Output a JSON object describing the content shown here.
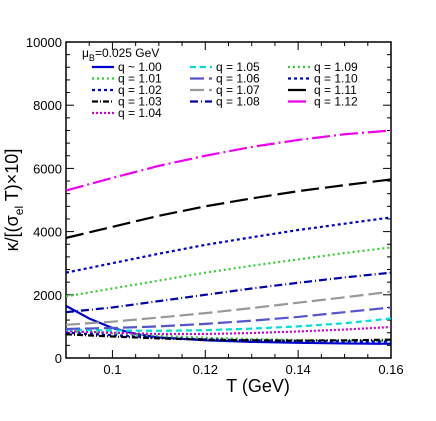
{
  "chart_data": {
    "type": "line",
    "xlabel": "T (GeV)",
    "ylabel_parts": {
      "main": "κ/[(σ",
      "sub": "el",
      "rest": " T)×10]"
    },
    "xlim": [
      0.09,
      0.16
    ],
    "ylim": [
      0,
      10000
    ],
    "x_ticks": [
      0.1,
      0.12,
      0.14,
      0.16
    ],
    "x_tick_labels": [
      "0.1",
      "0.12",
      "0.14",
      "0.16"
    ],
    "y_ticks": [
      0,
      2000,
      4000,
      6000,
      8000,
      10000
    ],
    "y_tick_labels": [
      "0",
      "2000",
      "4000",
      "6000",
      "8000",
      "10000"
    ],
    "annotation_parts": {
      "mu": "μ",
      "sub": "B",
      "rest": "=0.025 GeV"
    },
    "legend_placement": "top",
    "series": [
      {
        "name": "q ~ 1.00",
        "color": "#0000cc",
        "dash": "",
        "x": [
          0.09,
          0.095,
          0.1,
          0.105,
          0.11,
          0.12,
          0.13,
          0.14,
          0.15,
          0.16
        ],
        "y": [
          1650,
          1250,
          950,
          760,
          650,
          560,
          510,
          480,
          460,
          450
        ]
      },
      {
        "name": "q = 1.01",
        "color": "#33cc33",
        "dash": "2,3",
        "x": [
          0.09,
          0.1,
          0.11,
          0.12,
          0.13,
          0.14,
          0.15,
          0.16
        ],
        "y": [
          850,
          780,
          700,
          640,
          600,
          570,
          550,
          540
        ]
      },
      {
        "name": "q = 1.02",
        "color": "#0000cc",
        "dash": "3,3",
        "x": [
          0.09,
          0.1,
          0.11,
          0.12,
          0.13,
          0.14,
          0.15,
          0.16
        ],
        "y": [
          800,
          720,
          640,
          590,
          560,
          540,
          530,
          520
        ]
      },
      {
        "name": "q = 1.03",
        "color": "#000000",
        "dash": "6,2,1,2",
        "x": [
          0.09,
          0.1,
          0.11,
          0.12,
          0.13,
          0.14,
          0.15,
          0.16
        ],
        "y": [
          750,
          680,
          620,
          580,
          560,
          550,
          560,
          580
        ]
      },
      {
        "name": "q = 1.04",
        "color": "#cc00cc",
        "dash": "2,2",
        "x": [
          0.09,
          0.1,
          0.11,
          0.12,
          0.13,
          0.14,
          0.15,
          0.16
        ],
        "y": [
          850,
          800,
          760,
          760,
          790,
          840,
          900,
          980
        ]
      },
      {
        "name": "q = 1.05",
        "color": "#00dddd",
        "dash": "6,4",
        "x": [
          0.09,
          0.1,
          0.11,
          0.12,
          0.13,
          0.14,
          0.15,
          0.16
        ],
        "y": [
          900,
          870,
          860,
          880,
          930,
          1000,
          1100,
          1250
        ]
      },
      {
        "name": "q = 1.06",
        "color": "#5555cc",
        "dash": "14,5",
        "x": [
          0.09,
          0.1,
          0.11,
          0.12,
          0.13,
          0.14,
          0.15,
          0.16
        ],
        "y": [
          920,
          950,
          1000,
          1080,
          1180,
          1300,
          1450,
          1600
        ]
      },
      {
        "name": "q = 1.07",
        "color": "#999999",
        "dash": "14,5",
        "x": [
          0.09,
          0.1,
          0.11,
          0.12,
          0.13,
          0.14,
          0.15,
          0.16
        ],
        "y": [
          1050,
          1150,
          1280,
          1420,
          1580,
          1750,
          1920,
          2100
        ]
      },
      {
        "name": "q = 1.08",
        "color": "#0000aa",
        "dash": "8,3,1,3",
        "x": [
          0.09,
          0.1,
          0.11,
          0.12,
          0.13,
          0.14,
          0.15,
          0.16
        ],
        "y": [
          1450,
          1600,
          1800,
          2000,
          2200,
          2380,
          2550,
          2700
        ]
      },
      {
        "name": "q = 1.09",
        "color": "#33cc33",
        "dash": "2,3",
        "x": [
          0.09,
          0.1,
          0.11,
          0.12,
          0.13,
          0.14,
          0.15,
          0.16
        ],
        "y": [
          1950,
          2200,
          2450,
          2700,
          2920,
          3120,
          3320,
          3500
        ]
      },
      {
        "name": "q = 1.10",
        "color": "#0000cc",
        "dash": "3,3",
        "x": [
          0.09,
          0.1,
          0.11,
          0.12,
          0.13,
          0.14,
          0.15,
          0.16
        ],
        "y": [
          2700,
          3000,
          3300,
          3580,
          3820,
          4050,
          4250,
          4450
        ]
      },
      {
        "name": "q = 1.11",
        "color": "#000000",
        "dash": "18,6",
        "x": [
          0.09,
          0.1,
          0.11,
          0.12,
          0.13,
          0.14,
          0.15,
          0.16
        ],
        "y": [
          3800,
          4150,
          4500,
          4800,
          5050,
          5280,
          5470,
          5650
        ]
      },
      {
        "name": "q = 1.12",
        "color": "#ee00ee",
        "dash": "18,4,2,4",
        "x": [
          0.09,
          0.1,
          0.11,
          0.12,
          0.13,
          0.14,
          0.15,
          0.16
        ],
        "y": [
          5300,
          5700,
          6080,
          6400,
          6680,
          6900,
          7080,
          7200
        ]
      }
    ]
  }
}
